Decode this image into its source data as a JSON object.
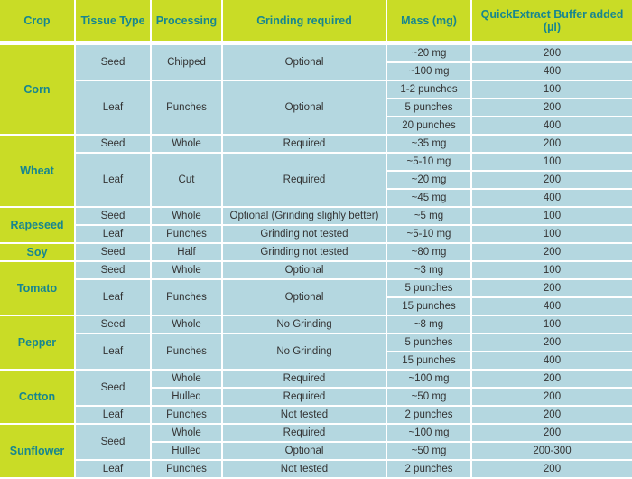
{
  "colors": {
    "header_bg": "#c9dc26",
    "header_text": "#17868f",
    "cell_bg": "#b4d7e0",
    "cell_text": "#333333"
  },
  "headers": [
    "Crop",
    "Tissue Type",
    "Processing",
    "Grinding required",
    "Mass (mg)",
    "QuickExtract Buffer added (µl)"
  ],
  "crops": [
    {
      "name": "Corn",
      "tissues": [
        {
          "type": "Seed",
          "groups": [
            {
              "processing": "Chipped",
              "grinding": "Optional",
              "rows": [
                {
                  "mass": "~20 mg",
                  "buffer": "200"
                },
                {
                  "mass": "~100 mg",
                  "buffer": "400"
                }
              ]
            }
          ]
        },
        {
          "type": "Leaf",
          "groups": [
            {
              "processing": "Punches",
              "grinding": "Optional",
              "rows": [
                {
                  "mass": "1-2 punches",
                  "buffer": "100"
                },
                {
                  "mass": "5 punches",
                  "buffer": "200"
                },
                {
                  "mass": "20 punches",
                  "buffer": "400"
                }
              ]
            }
          ]
        }
      ]
    },
    {
      "name": "Wheat",
      "tissues": [
        {
          "type": "Seed",
          "groups": [
            {
              "processing": "Whole",
              "grinding": "Required",
              "rows": [
                {
                  "mass": "~35 mg",
                  "buffer": "200"
                }
              ]
            }
          ]
        },
        {
          "type": "Leaf",
          "groups": [
            {
              "processing": "Cut",
              "grinding": "Required",
              "rows": [
                {
                  "mass": "~5-10 mg",
                  "buffer": "100"
                },
                {
                  "mass": "~20 mg",
                  "buffer": "200"
                },
                {
                  "mass": "~45 mg",
                  "buffer": "400"
                }
              ]
            }
          ]
        }
      ]
    },
    {
      "name": "Rapeseed",
      "tissues": [
        {
          "type": "Seed",
          "groups": [
            {
              "processing": "Whole",
              "grinding": "Optional (Grinding slighly better)",
              "rows": [
                {
                  "mass": "~5 mg",
                  "buffer": "100"
                }
              ]
            }
          ]
        },
        {
          "type": "Leaf",
          "groups": [
            {
              "processing": "Punches",
              "grinding": "Grinding not tested",
              "rows": [
                {
                  "mass": "~5-10 mg",
                  "buffer": "100"
                }
              ]
            }
          ]
        }
      ]
    },
    {
      "name": "Soy",
      "tissues": [
        {
          "type": "Seed",
          "groups": [
            {
              "processing": "Half",
              "grinding": "Grinding not tested",
              "rows": [
                {
                  "mass": "~80 mg",
                  "buffer": "200"
                }
              ]
            }
          ]
        }
      ]
    },
    {
      "name": "Tomato",
      "tissues": [
        {
          "type": "Seed",
          "groups": [
            {
              "processing": "Whole",
              "grinding": "Optional",
              "rows": [
                {
                  "mass": "~3 mg",
                  "buffer": "100"
                }
              ]
            }
          ]
        },
        {
          "type": "Leaf",
          "groups": [
            {
              "processing": "Punches",
              "grinding": "Optional",
              "rows": [
                {
                  "mass": "5 punches",
                  "buffer": "200"
                },
                {
                  "mass": "15 punches",
                  "buffer": "400"
                }
              ]
            }
          ]
        }
      ]
    },
    {
      "name": "Pepper",
      "tissues": [
        {
          "type": "Seed",
          "groups": [
            {
              "processing": "Whole",
              "grinding": "No Grinding",
              "rows": [
                {
                  "mass": "~8 mg",
                  "buffer": "100"
                }
              ]
            }
          ]
        },
        {
          "type": "Leaf",
          "groups": [
            {
              "processing": "Punches",
              "grinding": "No Grinding",
              "rows": [
                {
                  "mass": "5 punches",
                  "buffer": "200"
                },
                {
                  "mass": "15 punches",
                  "buffer": "400"
                }
              ]
            }
          ]
        }
      ]
    },
    {
      "name": "Cotton",
      "tissues": [
        {
          "type": "Seed",
          "groups": [
            {
              "processing": "Whole",
              "grinding": "Required",
              "rows": [
                {
                  "mass": "~100 mg",
                  "buffer": "200"
                }
              ]
            },
            {
              "processing": "Hulled",
              "grinding": "Required",
              "rows": [
                {
                  "mass": "~50 mg",
                  "buffer": "200"
                }
              ]
            }
          ]
        },
        {
          "type": "Leaf",
          "groups": [
            {
              "processing": "Punches",
              "grinding": "Not tested",
              "rows": [
                {
                  "mass": "2 punches",
                  "buffer": "200"
                }
              ]
            }
          ]
        }
      ]
    },
    {
      "name": "Sunflower",
      "tissues": [
        {
          "type": "Seed",
          "groups": [
            {
              "processing": "Whole",
              "grinding": "Required",
              "rows": [
                {
                  "mass": "~100 mg",
                  "buffer": "200"
                }
              ]
            },
            {
              "processing": "Hulled",
              "grinding": "Optional",
              "rows": [
                {
                  "mass": "~50 mg",
                  "buffer": "200-300"
                }
              ]
            }
          ]
        },
        {
          "type": "Leaf",
          "groups": [
            {
              "processing": "Punches",
              "grinding": "Not tested",
              "rows": [
                {
                  "mass": "2 punches",
                  "buffer": "200"
                }
              ]
            }
          ]
        }
      ]
    }
  ]
}
